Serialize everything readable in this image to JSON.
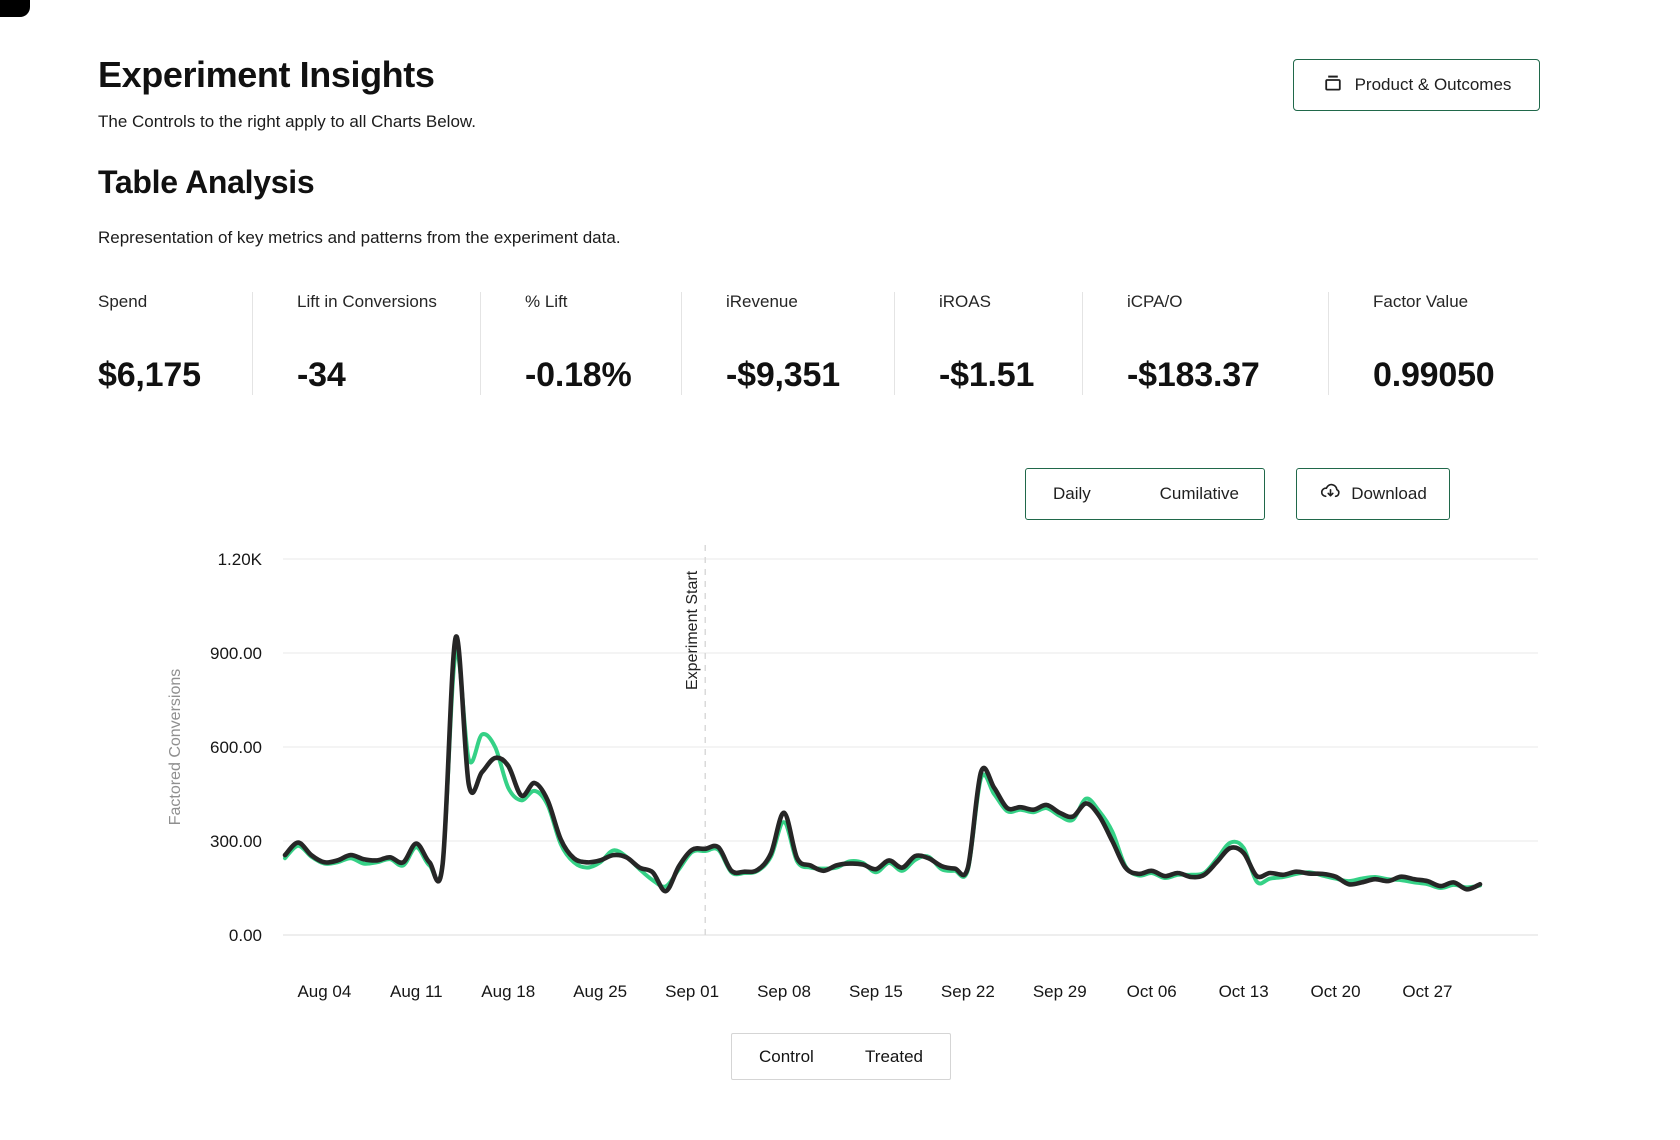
{
  "page": {
    "title": "Experiment Insights",
    "subtitle": "The Controls to the right apply to all Charts Below.",
    "product_button_label": "Product & Outcomes"
  },
  "table_analysis": {
    "title": "Table Analysis",
    "subtitle": "Representation of key metrics and patterns from the experiment data.",
    "metrics": [
      {
        "label": "Spend",
        "value": "$6,175"
      },
      {
        "label": "Lift in Conversions",
        "value": "-34"
      },
      {
        "label": "% Lift",
        "value": "-0.18%"
      },
      {
        "label": "iRevenue",
        "value": "-$9,351"
      },
      {
        "label": "iROAS",
        "value": "-$1.51"
      },
      {
        "label": "iCPA/O",
        "value": "-$183.37"
      },
      {
        "label": "Factor Value",
        "value": "0.99050"
      }
    ]
  },
  "chart_controls": {
    "daily_label": "Daily",
    "cumulative_label": "Cumilative",
    "download_label": "Download"
  },
  "colors": {
    "accent_green_border": "#20684a",
    "control_line": "#262626",
    "treated_line": "#35d186",
    "grid_line": "#ededed",
    "axis_label_gray": "#8f8f8f",
    "dashed_marker": "#d8d8d8"
  },
  "chart_data": {
    "type": "line",
    "title": "",
    "xlabel": "",
    "ylabel": "Factored Conversions",
    "ylim": [
      0,
      1200
    ],
    "grid": true,
    "legend_position": "bottom",
    "legend": [
      "Control",
      "Treated"
    ],
    "y_tick_values": [
      0,
      300,
      600,
      900,
      1200
    ],
    "y_ticks": [
      "0.00",
      "300.00",
      "600.00",
      "900.00",
      "1.20K"
    ],
    "x_tick_indices": [
      3,
      10,
      17,
      24,
      31,
      38,
      45,
      52,
      59,
      66,
      73,
      80,
      87
    ],
    "x_tick_labels": [
      "Aug 04",
      "Aug 11",
      "Aug 18",
      "Aug 25",
      "Sep 01",
      "Sep 08",
      "Sep 15",
      "Sep 22",
      "Sep 29",
      "Oct 06",
      "Oct 13",
      "Oct 20",
      "Oct 27"
    ],
    "annotation": {
      "label": "Experiment Start",
      "day_index": 32
    },
    "dates": [
      "Aug 01",
      "Aug 02",
      "Aug 03",
      "Aug 04",
      "Aug 05",
      "Aug 06",
      "Aug 07",
      "Aug 08",
      "Aug 09",
      "Aug 10",
      "Aug 11",
      "Aug 12",
      "Aug 13",
      "Aug 14",
      "Aug 15",
      "Aug 16",
      "Aug 17",
      "Aug 18",
      "Aug 19",
      "Aug 20",
      "Aug 21",
      "Aug 22",
      "Aug 23",
      "Aug 24",
      "Aug 25",
      "Aug 26",
      "Aug 27",
      "Aug 28",
      "Aug 29",
      "Aug 30",
      "Aug 31",
      "Sep 01",
      "Sep 02",
      "Sep 03",
      "Sep 04",
      "Sep 05",
      "Sep 06",
      "Sep 07",
      "Sep 08",
      "Sep 09",
      "Sep 10",
      "Sep 11",
      "Sep 12",
      "Sep 13",
      "Sep 14",
      "Sep 15",
      "Sep 16",
      "Sep 17",
      "Sep 18",
      "Sep 19",
      "Sep 20",
      "Sep 21",
      "Sep 22",
      "Sep 23",
      "Sep 24",
      "Sep 25",
      "Sep 26",
      "Sep 27",
      "Sep 28",
      "Sep 29",
      "Sep 30",
      "Oct 01",
      "Oct 02",
      "Oct 03",
      "Oct 04",
      "Oct 05",
      "Oct 06",
      "Oct 07",
      "Oct 08",
      "Oct 09",
      "Oct 10",
      "Oct 11",
      "Oct 12",
      "Oct 13",
      "Oct 14",
      "Oct 15",
      "Oct 16",
      "Oct 17",
      "Oct 18",
      "Oct 19",
      "Oct 20",
      "Oct 21",
      "Oct 22",
      "Oct 23",
      "Oct 24",
      "Oct 25",
      "Oct 26",
      "Oct 27",
      "Oct 28",
      "Oct 29",
      "Oct 30",
      "Oct 31"
    ],
    "series": [
      {
        "name": "Control",
        "color": "#262626",
        "values": [
          255,
          295,
          255,
          232,
          238,
          255,
          242,
          238,
          248,
          232,
          292,
          232,
          225,
          950,
          480,
          520,
          565,
          540,
          445,
          485,
          430,
          305,
          245,
          232,
          238,
          255,
          248,
          215,
          200,
          140,
          220,
          272,
          275,
          280,
          205,
          202,
          208,
          260,
          390,
          245,
          222,
          205,
          222,
          228,
          225,
          210,
          238,
          215,
          252,
          245,
          220,
          212,
          215,
          520,
          470,
          405,
          408,
          400,
          415,
          390,
          378,
          420,
          380,
          300,
          215,
          195,
          205,
          188,
          198,
          185,
          192,
          235,
          278,
          262,
          188,
          198,
          192,
          202,
          196,
          195,
          186,
          162,
          168,
          178,
          172,
          186,
          178,
          172,
          156,
          168,
          146,
          162
        ]
      },
      {
        "name": "Treated",
        "color": "#35d186",
        "values": [
          245,
          285,
          250,
          228,
          232,
          245,
          228,
          232,
          242,
          222,
          280,
          222,
          228,
          900,
          560,
          640,
          600,
          470,
          430,
          460,
          415,
          290,
          232,
          215,
          232,
          270,
          250,
          210,
          175,
          155,
          210,
          265,
          268,
          272,
          200,
          198,
          205,
          250,
          360,
          235,
          215,
          212,
          215,
          235,
          230,
          200,
          230,
          205,
          240,
          250,
          210,
          205,
          208,
          500,
          450,
          395,
          400,
          392,
          405,
          380,
          368,
          435,
          395,
          330,
          220,
          190,
          198,
          182,
          192,
          192,
          198,
          245,
          295,
          278,
          170,
          180,
          185,
          195,
          200,
          190,
          180,
          172,
          180,
          185,
          178,
          175,
          168,
          162,
          150,
          160,
          152,
          158
        ]
      }
    ]
  }
}
